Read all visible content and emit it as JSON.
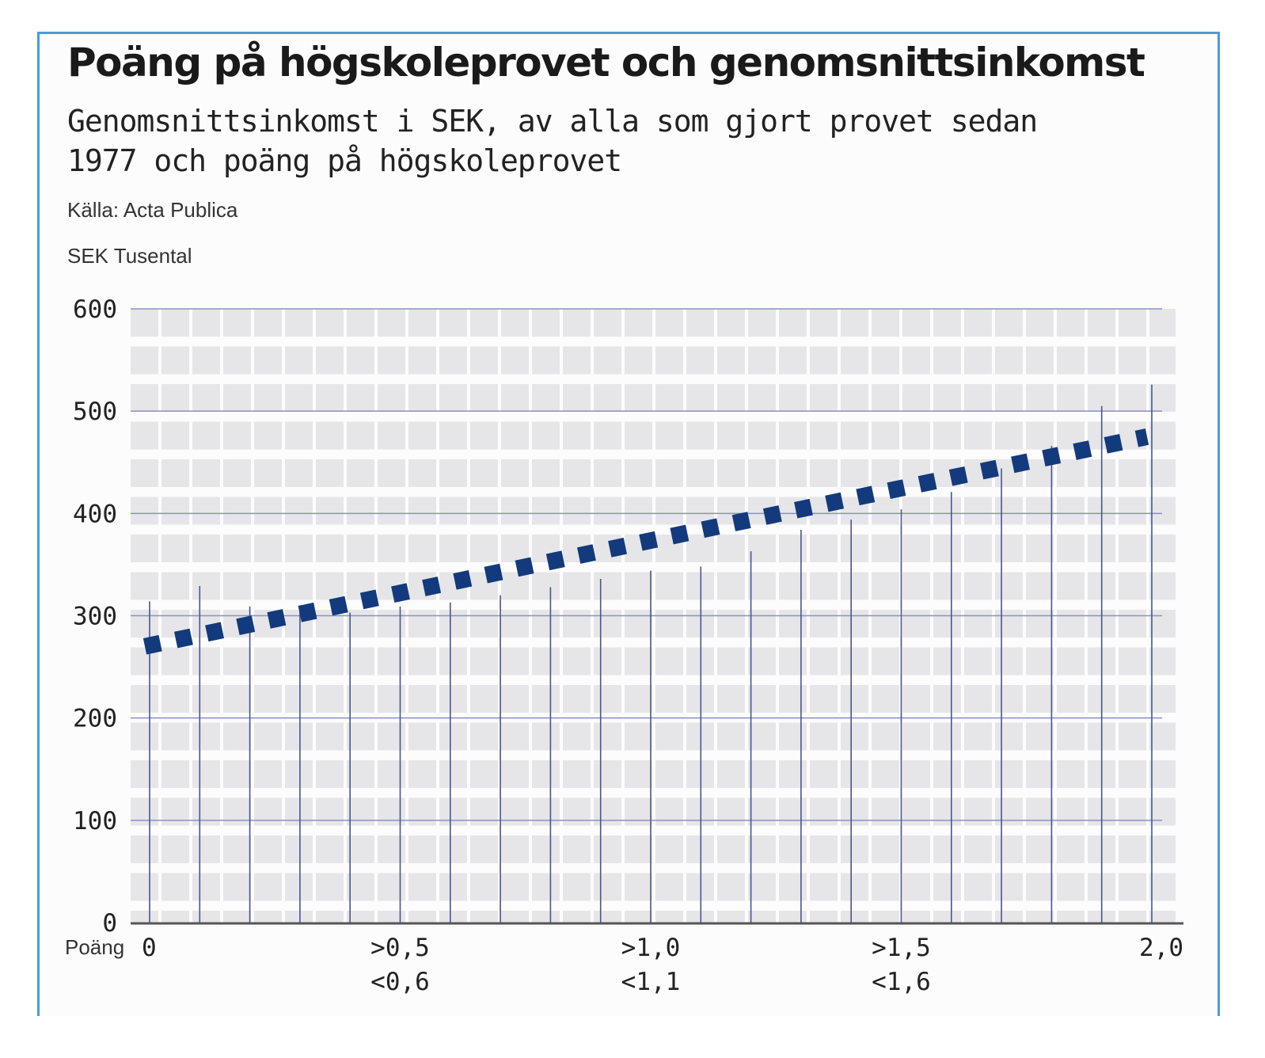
{
  "chart_data": {
    "type": "bar",
    "title": "Poäng på högskoleprovet och genomsnittsinkomst",
    "subtitle": "Genomsnittsinkomst i SEK, av alla som gjort provet sedan 1977 och poäng på högskoleprovet",
    "source": "Källa: Acta Publica",
    "ylabel": "SEK Tusental",
    "xlabel": "Poäng",
    "ylim": [
      0,
      600
    ],
    "yticks": [
      "0",
      "100",
      "200",
      "300",
      "400",
      "500",
      "600"
    ],
    "x": [
      0,
      0.1,
      0.2,
      0.3,
      0.4,
      0.5,
      0.6,
      0.7,
      0.8,
      0.9,
      1.0,
      1.1,
      1.2,
      1.3,
      1.4,
      1.5,
      1.6,
      1.7,
      1.8,
      1.9,
      2.0
    ],
    "xtick_labels": [
      {
        "index": 0,
        "lines": [
          "0"
        ]
      },
      {
        "index": 5,
        "lines": [
          ">0,5",
          "<0,6"
        ]
      },
      {
        "index": 10,
        "lines": [
          ">1,0",
          "<1,1"
        ]
      },
      {
        "index": 15,
        "lines": [
          ">1,5",
          "<1,6"
        ]
      },
      {
        "index": 20,
        "lines": [
          "2,0"
        ]
      }
    ],
    "values": [
      314,
      329,
      309,
      305,
      303,
      309,
      313,
      320,
      328,
      336,
      344,
      348,
      363,
      384,
      394,
      404,
      421,
      444,
      466,
      505,
      526
    ],
    "trend": {
      "style": "dotted",
      "start": 270,
      "end": 475
    },
    "grid": true,
    "colors": {
      "bars": "#4a5590",
      "trend": "#133a7c",
      "grid": "#8a92c0",
      "background_blocks": "#e6e6e8",
      "frame": "#4b9bd9"
    }
  }
}
